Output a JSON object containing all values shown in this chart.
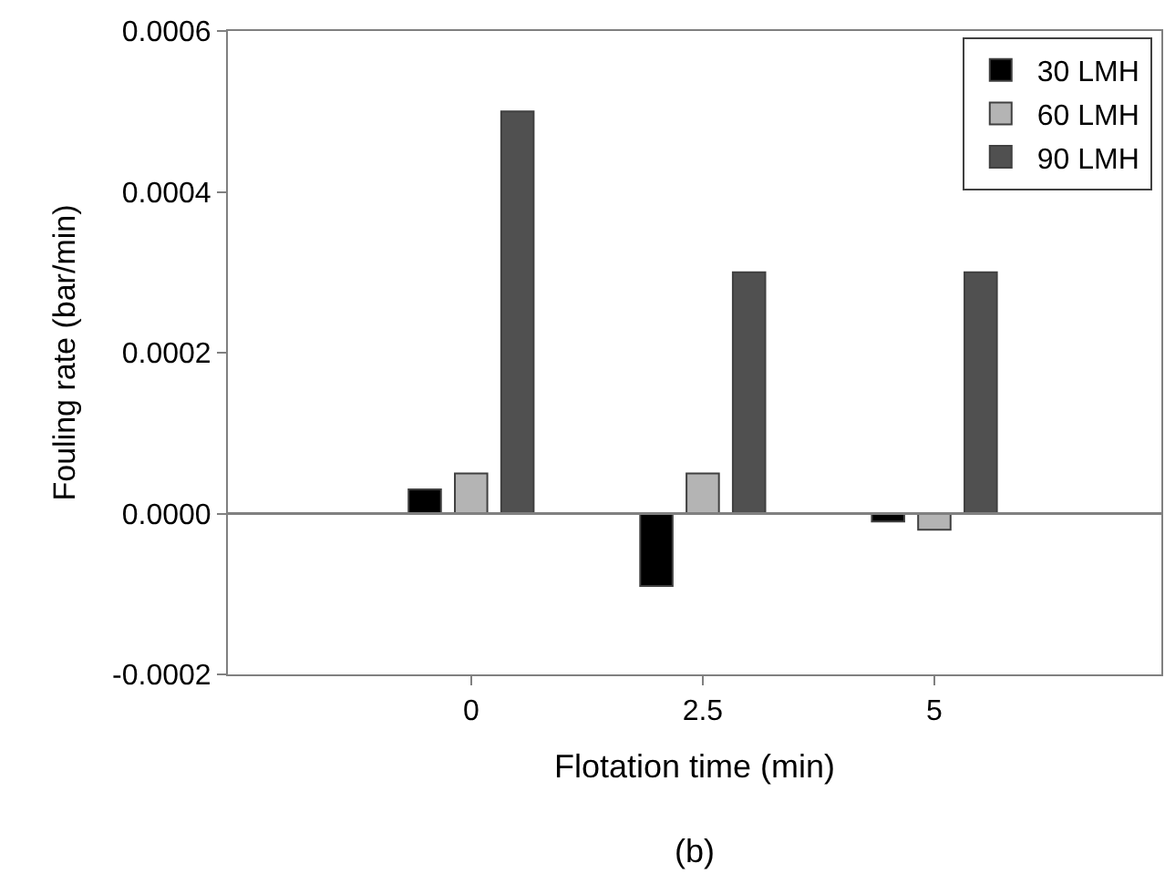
{
  "chart_data": {
    "type": "bar",
    "categories": [
      "0",
      "2.5",
      "5"
    ],
    "series": [
      {
        "name": "30 LMH",
        "color": "#000000",
        "values": [
          3e-05,
          -9e-05,
          -1e-05
        ]
      },
      {
        "name": "60 LMH",
        "color": "#b4b4b4",
        "values": [
          5e-05,
          5e-05,
          -2e-05
        ]
      },
      {
        "name": "90 LMH",
        "color": "#505050",
        "values": [
          0.0005,
          0.0003,
          0.0003
        ]
      }
    ],
    "xlabel": "Flotation time (min)",
    "ylabel": "Fouling rate (bar/min)",
    "ylim": [
      -0.0002,
      0.0006
    ],
    "yticks": [
      {
        "value": -0.0002,
        "label": "-0.0002"
      },
      {
        "value": 0,
        "label": "0.0000"
      },
      {
        "value": 0.0002,
        "label": "0.0002"
      },
      {
        "value": 0.0004,
        "label": "0.0004"
      },
      {
        "value": 0.0006,
        "label": "0.0006"
      }
    ],
    "ref_lines": [
      {
        "axis": "y",
        "value": 0,
        "color": "#808080"
      }
    ],
    "annotations": [
      "(b)"
    ],
    "legend": "top right"
  }
}
